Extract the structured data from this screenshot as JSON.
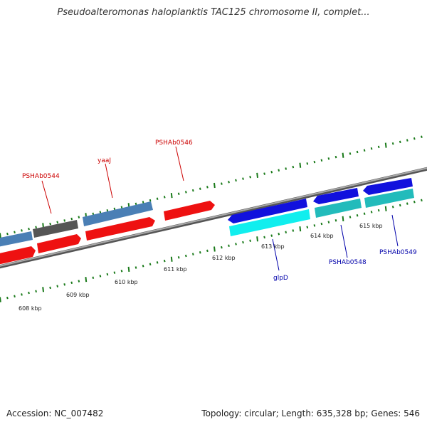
{
  "header": {
    "title": "Pseudoalteromonas haloplanktis TAC125 chromosome II, complet..."
  },
  "footer": {
    "accession": "Accession: NC_007482",
    "summary": "Topology: circular; Length: 635,328 bp; Genes: 546"
  },
  "scale": {
    "labels": [
      "608 kbp",
      "609 kbp",
      "610 kbp",
      "611 kbp",
      "612 kbp",
      "613 kbp",
      "614 kbp",
      "615 kbp"
    ]
  },
  "genes": {
    "forward_labels": [
      "PSHAb0544",
      "yaaJ",
      "PSHAb0546"
    ],
    "reverse_labels": [
      "glpD",
      "PSHAb0548",
      "PSHAb0549"
    ]
  },
  "colors": {
    "forward_label": "#cc0000",
    "reverse_label": "#0000aa",
    "backbone": "#888888",
    "tick": "#1a7a1a",
    "cds_red": "#ee1111",
    "cds_blue": "#1111dd",
    "cds_cyan": "#11dddd",
    "gene_steel": "#4a7fb5",
    "gene_teal": "#22bbbb",
    "gene_grey": "#555555"
  }
}
